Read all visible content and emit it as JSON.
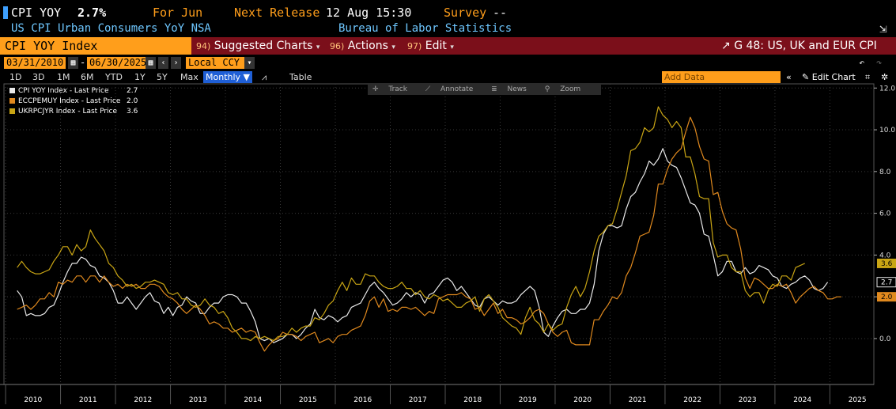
{
  "header": {
    "ticker": "CPI YOY",
    "value": "2.7%",
    "for_label": "For Jun",
    "release_label": "Next Release",
    "release_value": "12 Aug 15:30",
    "survey_label": "Survey",
    "survey_value": "--",
    "subtitle": "US CPI Urban Consumers YoY NSA",
    "source": "Bureau of Labor Statistics"
  },
  "menubar": {
    "security": "CPI YOY Index",
    "suggested_num": "94)",
    "suggested": "Suggested Charts",
    "actions_num": "96)",
    "actions": "Actions",
    "edit_num": "97)",
    "edit": "Edit",
    "chart_title": "G 48: US, UK and EUR CPI"
  },
  "controls": {
    "start_date": "03/31/2010",
    "dash": "-",
    "end_date": "06/30/2025",
    "currency": "Local CCY",
    "ranges": [
      "1D",
      "3D",
      "1M",
      "6M",
      "YTD",
      "1Y",
      "5Y",
      "Max"
    ],
    "frequency": "Monthly",
    "table": "Table",
    "add_data_placeholder": "Add Data",
    "edit_chart": "Edit Chart"
  },
  "toolbar": {
    "track": "Track",
    "annotate": "Annotate",
    "news": "News",
    "zoom": "Zoom"
  },
  "colors": {
    "accent": "#ff9e1b",
    "menubar": "#7b0f1a",
    "us": "#e8e8e8",
    "eur": "#e0891e",
    "uk": "#c9a514"
  },
  "chart_data": {
    "type": "line",
    "ylim": [
      -2.2,
      12.2
    ],
    "yticks": [
      "12.0",
      "10.0",
      "8.0",
      "6.0",
      "4.0",
      "2.0",
      "0.0"
    ],
    "xticks": [
      "2010",
      "2011",
      "2012",
      "2013",
      "2014",
      "2015",
      "2016",
      "2017",
      "2018",
      "2019",
      "2020",
      "2021",
      "2022",
      "2023",
      "2024",
      "2025"
    ],
    "x_start": 2010.21,
    "x_step": 0.0833333,
    "series": [
      {
        "name": "CPI YOY Index - Last Price",
        "last": "2.7",
        "color": "#e8e8e8",
        "values": [
          2.3,
          2.0,
          1.1,
          1.2,
          1.1,
          1.1,
          1.2,
          1.5,
          1.6,
          2.1,
          2.7,
          3.2,
          3.6,
          3.6,
          3.9,
          3.8,
          3.5,
          3.4,
          3.0,
          2.9,
          2.7,
          2.3,
          1.7,
          1.7,
          2.0,
          1.7,
          1.4,
          1.7,
          2.0,
          2.2,
          1.8,
          1.7,
          1.2,
          1.5,
          1.1,
          1.5,
          1.6,
          2.0,
          1.8,
          1.7,
          1.2,
          1.2,
          1.5,
          1.7,
          1.7,
          2.0,
          2.1,
          2.1,
          2.0,
          1.7,
          1.7,
          1.3,
          0.8,
          0.0,
          -0.1,
          0.0,
          -0.2,
          -0.1,
          0.0,
          0.2,
          0.2,
          0.0,
          0.2,
          0.5,
          0.7,
          1.4,
          1.0,
          0.9,
          1.1,
          1.0,
          0.8,
          1.0,
          1.1,
          1.5,
          1.6,
          1.7,
          2.1,
          2.5,
          2.7,
          2.4,
          2.2,
          1.9,
          1.6,
          1.7,
          1.9,
          2.2,
          2.0,
          2.2,
          2.1,
          1.7,
          2.1,
          2.2,
          2.5,
          2.8,
          2.9,
          2.7,
          2.3,
          2.5,
          2.2,
          1.9,
          1.6,
          1.5,
          1.9,
          2.0,
          1.8,
          1.6,
          1.8,
          1.7,
          1.7,
          1.8,
          2.1,
          2.3,
          2.5,
          2.3,
          1.5,
          0.3,
          0.1,
          0.6,
          1.0,
          1.3,
          1.4,
          1.2,
          1.2,
          1.4,
          1.4,
          1.7,
          2.6,
          4.2,
          5.0,
          5.4,
          5.4,
          5.3,
          5.4,
          6.2,
          6.8,
          7.0,
          7.5,
          7.9,
          8.5,
          8.3,
          8.6,
          9.1,
          8.5,
          8.3,
          8.2,
          7.7,
          7.1,
          6.5,
          6.4,
          6.0,
          5.0,
          4.9,
          4.0,
          3.0,
          3.2,
          3.7,
          3.7,
          3.2,
          3.1,
          3.4,
          3.1,
          3.2,
          3.5,
          3.4,
          3.3,
          3.0,
          2.9,
          2.5,
          2.4,
          2.6,
          2.7,
          2.9,
          3.0,
          2.8,
          2.4,
          2.3,
          2.4,
          2.7
        ]
      },
      {
        "name": "ECCPEMUY Index - Last Price",
        "last": "2.0",
        "color": "#e0891e",
        "values": [
          1.4,
          1.5,
          1.6,
          1.4,
          1.6,
          1.9,
          1.9,
          2.2,
          2.0,
          2.7,
          2.6,
          2.8,
          2.7,
          3.0,
          3.0,
          2.7,
          3.0,
          3.0,
          2.7,
          3.0,
          2.7,
          2.5,
          2.6,
          2.4,
          2.6,
          2.5,
          2.6,
          2.4,
          2.4,
          2.6,
          2.6,
          2.5,
          2.2,
          2.0,
          1.9,
          1.7,
          1.4,
          1.2,
          1.4,
          1.6,
          1.4,
          1.1,
          0.7,
          0.8,
          0.7,
          0.5,
          0.5,
          0.3,
          0.4,
          0.5,
          0.3,
          0.4,
          0.3,
          -0.2,
          -0.6,
          -0.3,
          -0.1,
          0.0,
          0.3,
          0.2,
          0.2,
          0.1,
          -0.1,
          0.1,
          0.2,
          0.3,
          -0.2,
          -0.1,
          0.0,
          -0.2,
          0.1,
          0.2,
          0.2,
          0.4,
          0.5,
          0.6,
          1.1,
          1.8,
          2.0,
          1.5,
          1.9,
          1.3,
          1.4,
          1.3,
          1.5,
          1.5,
          1.4,
          1.5,
          1.3,
          1.1,
          1.3,
          1.2,
          1.9,
          2.0,
          2.1,
          2.1,
          2.1,
          2.2,
          2.0,
          1.9,
          1.4,
          1.5,
          1.1,
          1.4,
          1.7,
          1.2,
          1.4,
          1.0,
          1.0,
          0.9,
          0.7,
          0.8,
          1.0,
          1.3,
          1.4,
          1.2,
          0.7,
          0.3,
          0.1,
          0.3,
          0.4,
          -0.2,
          -0.3,
          -0.3,
          -0.3,
          -0.3,
          0.9,
          0.9,
          1.3,
          1.6,
          2.0,
          1.9,
          2.2,
          3.0,
          3.4,
          4.1,
          4.9,
          5.0,
          5.1,
          5.9,
          7.4,
          7.4,
          8.1,
          8.6,
          8.9,
          9.1,
          9.9,
          10.6,
          10.1,
          9.2,
          8.6,
          8.5,
          6.9,
          7.0,
          6.1,
          5.5,
          5.3,
          5.2,
          4.3,
          2.9,
          2.4,
          2.9,
          2.8,
          2.6,
          2.4,
          2.4,
          2.6,
          2.5,
          2.6,
          2.2,
          1.7,
          2.0,
          2.2,
          2.4,
          2.5,
          2.3,
          2.2,
          1.9,
          1.9,
          2.0,
          2.0
        ]
      },
      {
        "name": "UKRPCJYR Index - Last Price",
        "last": "3.6",
        "color": "#c9a514",
        "values": [
          3.4,
          3.7,
          3.4,
          3.2,
          3.1,
          3.1,
          3.2,
          3.3,
          3.7,
          4.0,
          4.4,
          4.4,
          4.0,
          4.5,
          4.2,
          4.4,
          5.2,
          4.8,
          4.5,
          4.2,
          3.6,
          3.4,
          3.0,
          2.8,
          2.5,
          2.6,
          2.4,
          2.5,
          2.7,
          2.7,
          2.8,
          2.7,
          2.6,
          2.2,
          2.1,
          2.2,
          1.9,
          1.9,
          1.6,
          1.5,
          1.6,
          1.9,
          1.6,
          1.5,
          1.2,
          1.3,
          1.0,
          0.5,
          0.3,
          0.0,
          0.0,
          -0.1,
          0.1,
          0.0,
          0.1,
          0.0,
          -0.1,
          0.1,
          0.1,
          0.2,
          0.5,
          0.3,
          0.5,
          0.6,
          0.6,
          1.0,
          0.9,
          1.2,
          1.6,
          1.8,
          2.3,
          2.7,
          2.3,
          2.9,
          2.6,
          2.6,
          3.1,
          3.0,
          3.0,
          2.7,
          2.5,
          2.4,
          2.4,
          2.5,
          2.7,
          2.4,
          2.4,
          2.1,
          2.3,
          2.0,
          1.9,
          2.1,
          2.0,
          1.8,
          1.9,
          1.7,
          1.5,
          1.5,
          1.7,
          1.8,
          2.0,
          1.3,
          1.9,
          2.1,
          1.8,
          1.5,
          1.0,
          0.8,
          0.6,
          0.5,
          0.2,
          1.0,
          1.5,
          0.9,
          0.7,
          0.3,
          0.7,
          0.4,
          0.6,
          0.7,
          1.5,
          2.1,
          2.5,
          2.0,
          2.4,
          3.2,
          4.2,
          4.9,
          5.1,
          5.4,
          5.5,
          6.2,
          7.0,
          7.8,
          9.0,
          9.1,
          9.4,
          10.1,
          9.9,
          10.1,
          11.1,
          10.7,
          10.5,
          10.1,
          10.4,
          10.1,
          8.7,
          8.7,
          7.9,
          6.8,
          6.7,
          6.7,
          4.6,
          3.9,
          4.0,
          4.0,
          3.4,
          3.2,
          3.2,
          2.3,
          2.0,
          2.2,
          2.2,
          1.7,
          2.3,
          2.6,
          2.5,
          3.0,
          3.0,
          2.8,
          3.4,
          3.5,
          3.6
        ]
      }
    ]
  }
}
